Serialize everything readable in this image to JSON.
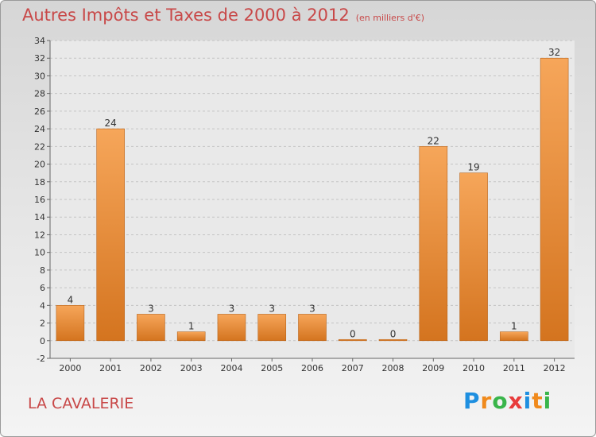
{
  "header": {
    "title": "Autres Impôts et Taxes de 2000 à 2012",
    "unit": "(en milliers d'€)"
  },
  "footer": {
    "place": "LA CAVALERIE",
    "logo_text": "Proxiti"
  },
  "colors": {
    "bar_top": "#f6a65a",
    "bar_bottom": "#d4741f",
    "title": "#c84848",
    "logo": [
      "#1e8fe0",
      "#f08a1c",
      "#39b54a",
      "#e83c3c",
      "#1e8fe0",
      "#f08a1c",
      "#39b54a"
    ]
  },
  "chart_data": {
    "type": "bar",
    "title": "Autres Impôts et Taxes de 2000 à 2012",
    "categories": [
      "2000",
      "2001",
      "2002",
      "2003",
      "2004",
      "2005",
      "2006",
      "2007",
      "2008",
      "2009",
      "2010",
      "2011",
      "2012"
    ],
    "values": [
      4,
      24,
      3,
      1,
      3,
      3,
      3,
      0,
      0,
      22,
      19,
      1,
      32
    ],
    "ylim": [
      -2,
      34
    ],
    "yticks": [
      -2,
      0,
      2,
      4,
      6,
      8,
      10,
      12,
      14,
      16,
      18,
      20,
      22,
      24,
      26,
      28,
      30,
      32,
      34
    ],
    "grid": true,
    "xlabel": "",
    "ylabel": ""
  }
}
